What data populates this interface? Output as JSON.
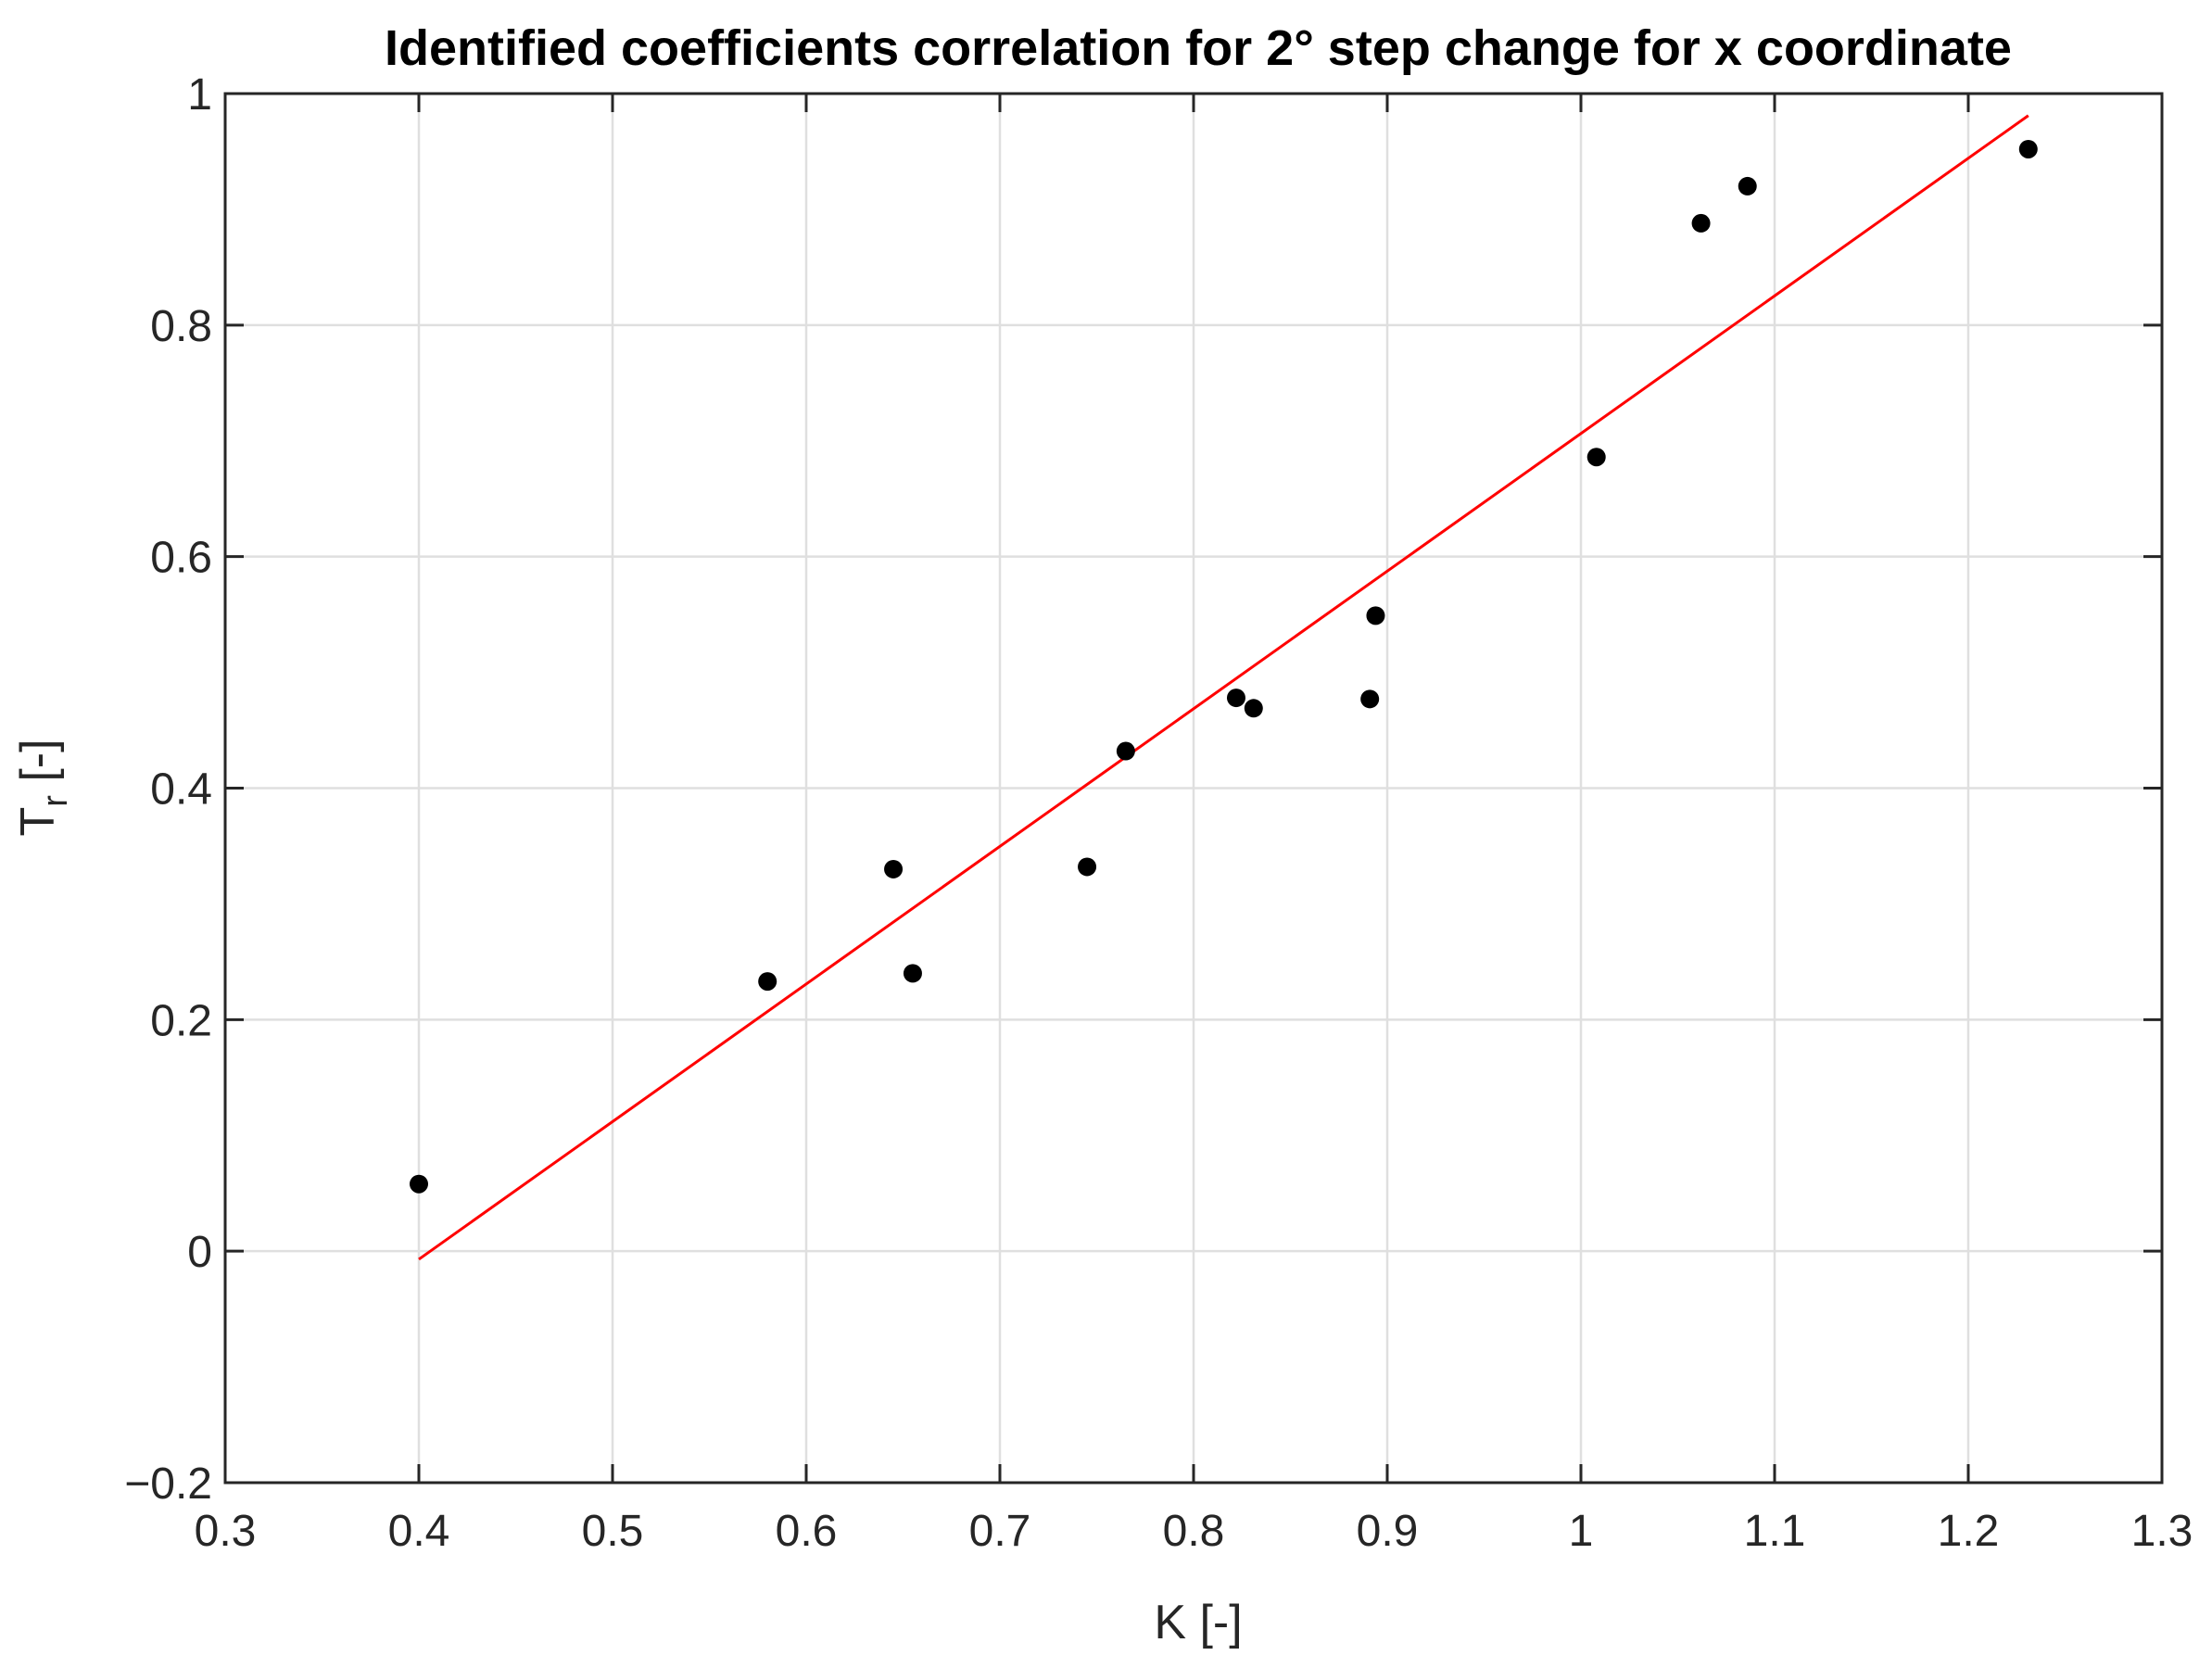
{
  "chart_data": {
    "type": "scatter",
    "title": "Identified coefficients correlation for 2° step change for x coordinate",
    "xlabel": "K [-]",
    "ylabel_main": "T",
    "ylabel_sub": "r",
    "ylabel_suffix": " [-]",
    "xlim": [
      0.3,
      1.3
    ],
    "ylim": [
      -0.2,
      1
    ],
    "xticks": [
      0.3,
      0.4,
      0.5,
      0.6,
      0.7,
      0.8,
      0.9,
      1.0,
      1.1,
      1.2,
      1.3
    ],
    "xtick_labels": [
      "0.3",
      "0.4",
      "0.5",
      "0.6",
      "0.7",
      "0.8",
      "0.9",
      "1",
      "1.1",
      "1.2",
      "1.3"
    ],
    "yticks": [
      -0.2,
      0,
      0.2,
      0.4,
      0.6,
      0.8,
      1.0
    ],
    "ytick_labels": [
      "−0.2",
      "0",
      "0.2",
      "0.4",
      "0.6",
      "0.8",
      "1"
    ],
    "grid": true,
    "series": [
      {
        "type": "scatter",
        "color": "#000000",
        "points": [
          {
            "x": 0.4,
            "y": 0.058
          },
          {
            "x": 0.58,
            "y": 0.233
          },
          {
            "x": 0.645,
            "y": 0.33
          },
          {
            "x": 0.655,
            "y": 0.24
          },
          {
            "x": 0.745,
            "y": 0.332
          },
          {
            "x": 0.765,
            "y": 0.432
          },
          {
            "x": 0.822,
            "y": 0.478
          },
          {
            "x": 0.831,
            "y": 0.469
          },
          {
            "x": 0.891,
            "y": 0.477
          },
          {
            "x": 0.894,
            "y": 0.549
          },
          {
            "x": 1.008,
            "y": 0.686
          },
          {
            "x": 1.062,
            "y": 0.888
          },
          {
            "x": 1.086,
            "y": 0.92
          },
          {
            "x": 1.231,
            "y": 0.952
          }
        ]
      },
      {
        "type": "line",
        "color": "#ff0000",
        "points": [
          {
            "x": 0.4,
            "y": -0.007
          },
          {
            "x": 1.231,
            "y": 0.981
          }
        ]
      }
    ]
  }
}
